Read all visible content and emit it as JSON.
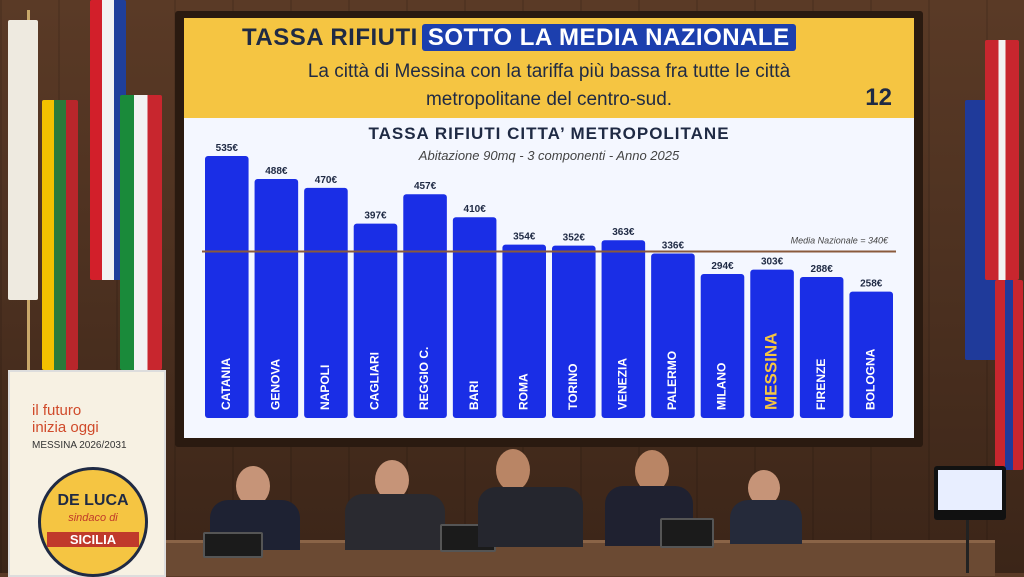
{
  "slide": {
    "title_left": "TASSA RIFIUTI",
    "title_highlight": "SOTTO LA MEDIA NAZIONALE",
    "subtitle_line1": "La città di Messina con la tariffa più bassa fra tutte le città",
    "subtitle_line2": "metropolitane del centro-sud.",
    "page_number": "12",
    "chart_title": "TASSA RIFIUTI CITTA’ METROPOLITANE",
    "chart_subtitle": "Abitazione 90mq - 3 componenti - Anno 2025",
    "reference_label": "Media Nazionale = 340€"
  },
  "chart_data": {
    "type": "bar",
    "categories": [
      "CATANIA",
      "GENOVA",
      "NAPOLI",
      "CAGLIARI",
      "REGGIO C.",
      "BARI",
      "ROMA",
      "TORINO",
      "VENEZIA",
      "PALERMO",
      "MILANO",
      "MESSINA",
      "FIRENZE",
      "BOLOGNA"
    ],
    "values": [
      535,
      488,
      470,
      397,
      457,
      410,
      354,
      352,
      363,
      336,
      294,
      303,
      288,
      258
    ],
    "value_labels": [
      "535€",
      "488€",
      "470€",
      "397€",
      "457€",
      "410€",
      "354€",
      "352€",
      "363€",
      "336€",
      "294€",
      "303€",
      "288€",
      "258€"
    ],
    "reference_line": 340,
    "highlight_category": "MESSINA",
    "colors": {
      "bar": "#1a2ee6",
      "highlight_text": "#f5c542",
      "label_text": "#ffffff",
      "reference": "#8a5a3c"
    }
  },
  "rollup": {
    "line1": "il futuro",
    "line2": "inizia oggi",
    "line3": "MESSINA 2026/2031",
    "name": "DE LUCA",
    "role": "sindaco di",
    "region": "SICILIA"
  }
}
